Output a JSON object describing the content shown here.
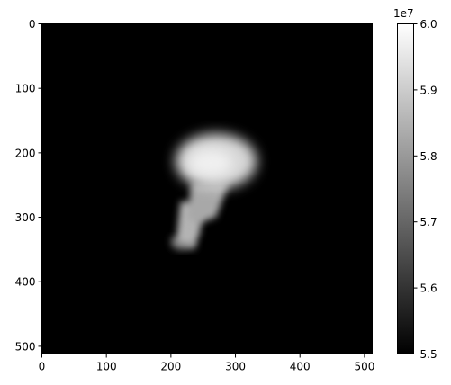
{
  "chart_data": {
    "type": "heatmap",
    "colormap": "gray",
    "image_size": [
      512,
      512
    ],
    "xlim": [
      0,
      512
    ],
    "ylim": [
      512,
      0
    ],
    "x_ticks": [
      0,
      100,
      200,
      300,
      400,
      500
    ],
    "y_ticks": [
      0,
      100,
      200,
      300,
      400,
      500
    ],
    "x_tick_labels": [
      "0",
      "100",
      "200",
      "300",
      "400",
      "500"
    ],
    "y_tick_labels": [
      "0",
      "100",
      "200",
      "300",
      "400",
      "500"
    ],
    "background_value": 55000000,
    "color_range": [
      55000000,
      60000000
    ],
    "colorbar": {
      "ticks": [
        55000000,
        56000000,
        57000000,
        58000000,
        59000000,
        60000000
      ],
      "tick_labels": [
        "5.5",
        "5.6",
        "5.7",
        "5.8",
        "5.9",
        "6.0"
      ],
      "offset_label": "1e7"
    },
    "bright_region": {
      "head": {
        "center": [
          270,
          213
        ],
        "radii": [
          63,
          43
        ],
        "value": 59200000
      },
      "neck": {
        "points": [
          [
            232,
            245
          ],
          [
            290,
            245
          ],
          [
            270,
            300
          ],
          [
            240,
            310
          ],
          [
            225,
            300
          ]
        ],
        "value": 58300000
      },
      "body": {
        "points": [
          [
            215,
            275
          ],
          [
            250,
            280
          ],
          [
            245,
            325
          ],
          [
            235,
            345
          ],
          [
            208,
            340
          ]
        ],
        "value": 58500000
      },
      "base": {
        "points": [
          [
            200,
            330
          ],
          [
            240,
            335
          ],
          [
            238,
            350
          ],
          [
            212,
            352
          ],
          [
            200,
            345
          ]
        ],
        "value": 57000000
      }
    },
    "grid": false,
    "title": "",
    "xlabel": "",
    "ylabel": ""
  }
}
